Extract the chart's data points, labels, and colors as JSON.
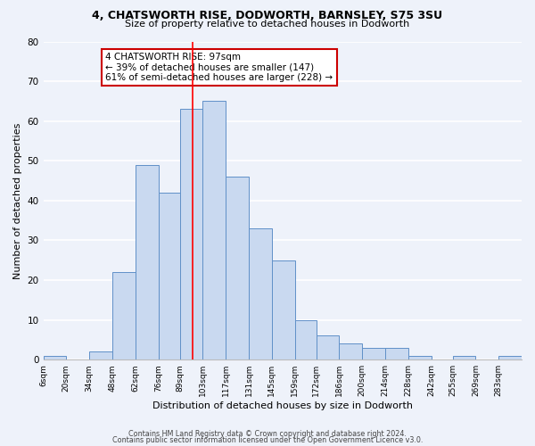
{
  "title": "4, CHATSWORTH RISE, DODWORTH, BARNSLEY, S75 3SU",
  "subtitle": "Size of property relative to detached houses in Dodworth",
  "xlabel": "Distribution of detached houses by size in Dodworth",
  "ylabel": "Number of detached properties",
  "bar_color": "#c9d9f0",
  "bar_edge_color": "#6090c8",
  "background_color": "#eef2fa",
  "grid_color": "#ffffff",
  "bin_labels": [
    "6sqm",
    "20sqm",
    "34sqm",
    "48sqm",
    "62sqm",
    "76sqm",
    "89sqm",
    "103sqm",
    "117sqm",
    "131sqm",
    "145sqm",
    "159sqm",
    "172sqm",
    "186sqm",
    "200sqm",
    "214sqm",
    "228sqm",
    "242sqm",
    "255sqm",
    "269sqm",
    "283sqm"
  ],
  "bin_edges": [
    6,
    20,
    34,
    48,
    62,
    76,
    89,
    103,
    117,
    131,
    145,
    159,
    172,
    186,
    200,
    214,
    228,
    242,
    255,
    269,
    283,
    297
  ],
  "counts": [
    1,
    0,
    2,
    22,
    49,
    42,
    63,
    65,
    46,
    33,
    25,
    10,
    6,
    4,
    3,
    3,
    1,
    0,
    1,
    0,
    1
  ],
  "red_line_x": 97,
  "annotation_title": "4 CHATSWORTH RISE: 97sqm",
  "annotation_line1": "← 39% of detached houses are smaller (147)",
  "annotation_line2": "61% of semi-detached houses are larger (228) →",
  "annotation_box_color": "#ffffff",
  "annotation_border_color": "#cc0000",
  "footer_line1": "Contains HM Land Registry data © Crown copyright and database right 2024.",
  "footer_line2": "Contains public sector information licensed under the Open Government Licence v3.0.",
  "ylim": [
    0,
    80
  ],
  "yticks": [
    0,
    10,
    20,
    30,
    40,
    50,
    60,
    70,
    80
  ]
}
